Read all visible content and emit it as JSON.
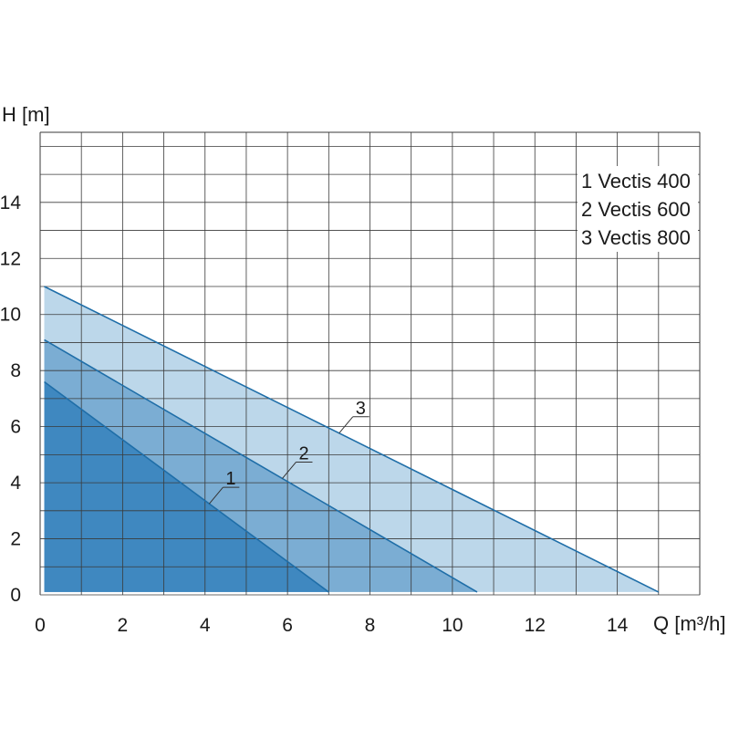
{
  "chart_data": {
    "type": "area",
    "xlabel": "Q [m³/h]",
    "ylabel": "H [m]",
    "xlim": [
      0,
      16
    ],
    "ylim": [
      0,
      16.5
    ],
    "x_ticks": [
      "0",
      "2",
      "4",
      "6",
      "8",
      "10",
      "12",
      "14"
    ],
    "y_ticks": [
      "0",
      "2",
      "4",
      "6",
      "8",
      "10",
      "12",
      "14"
    ],
    "grid": true,
    "legend_position": "top-right",
    "legend": [
      "1 Vectis 400",
      "2 Vectis 600",
      "3 Vectis 800"
    ],
    "series": [
      {
        "name": "1 Vectis 400",
        "label": "1",
        "color": "#3f88c0",
        "points": [
          {
            "x": 0.1,
            "y": 7.6
          },
          {
            "x": 7.0,
            "y": 0.1
          }
        ]
      },
      {
        "name": "2 Vectis 600",
        "label": "2",
        "color": "#7badd3",
        "points": [
          {
            "x": 0.1,
            "y": 9.1
          },
          {
            "x": 10.6,
            "y": 0.1
          }
        ]
      },
      {
        "name": "3 Vectis 800",
        "label": "3",
        "color": "#bcd7ea",
        "points": [
          {
            "x": 0.1,
            "y": 11.0
          },
          {
            "x": 15.0,
            "y": 0.1
          }
        ]
      }
    ]
  }
}
